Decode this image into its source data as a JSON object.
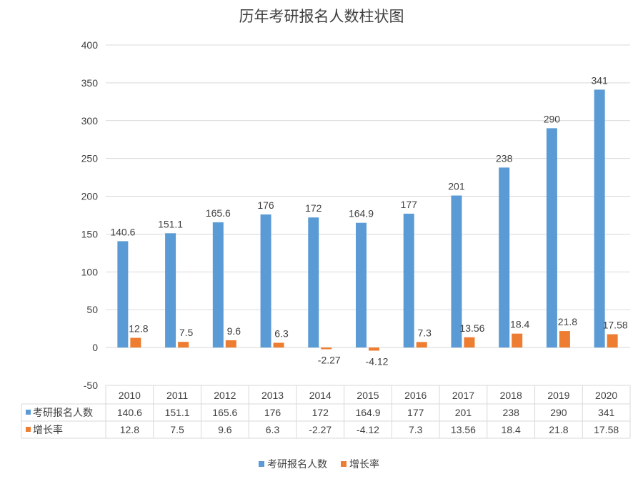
{
  "chart_data": {
    "type": "bar",
    "title": "历年考研报名人数柱状图",
    "categories": [
      "2010",
      "2011",
      "2012",
      "2013",
      "2014",
      "2015",
      "2016",
      "2017",
      "2018",
      "2019",
      "2020"
    ],
    "series": [
      {
        "name": "考研报名人数",
        "color": "#5b9bd5",
        "values": [
          140.6,
          151.1,
          165.6,
          176,
          172,
          164.9,
          177,
          201,
          238,
          290,
          341
        ],
        "labels": [
          "140.6",
          "151.1",
          "165.6",
          "176",
          "172",
          "164.9",
          "177",
          "201",
          "238",
          "290",
          "341"
        ]
      },
      {
        "name": "增长率",
        "color": "#ed7d31",
        "values": [
          12.8,
          7.5,
          9.6,
          6.3,
          -2.27,
          -4.12,
          7.3,
          13.56,
          18.4,
          21.8,
          17.58
        ],
        "labels": [
          "12.8",
          "7.5",
          "9.6",
          "6.3",
          "-2.27",
          "-4.12",
          "7.3",
          "13.56",
          "18.4",
          "21.8",
          "17.58"
        ]
      }
    ],
    "ylim": [
      -50,
      400
    ],
    "yticks": [
      "-50",
      "0",
      "50",
      "100",
      "150",
      "200",
      "250",
      "300",
      "350",
      "400"
    ],
    "grid": true,
    "data_table": true,
    "legend": "bottom",
    "xlabel": "",
    "ylabel": ""
  }
}
